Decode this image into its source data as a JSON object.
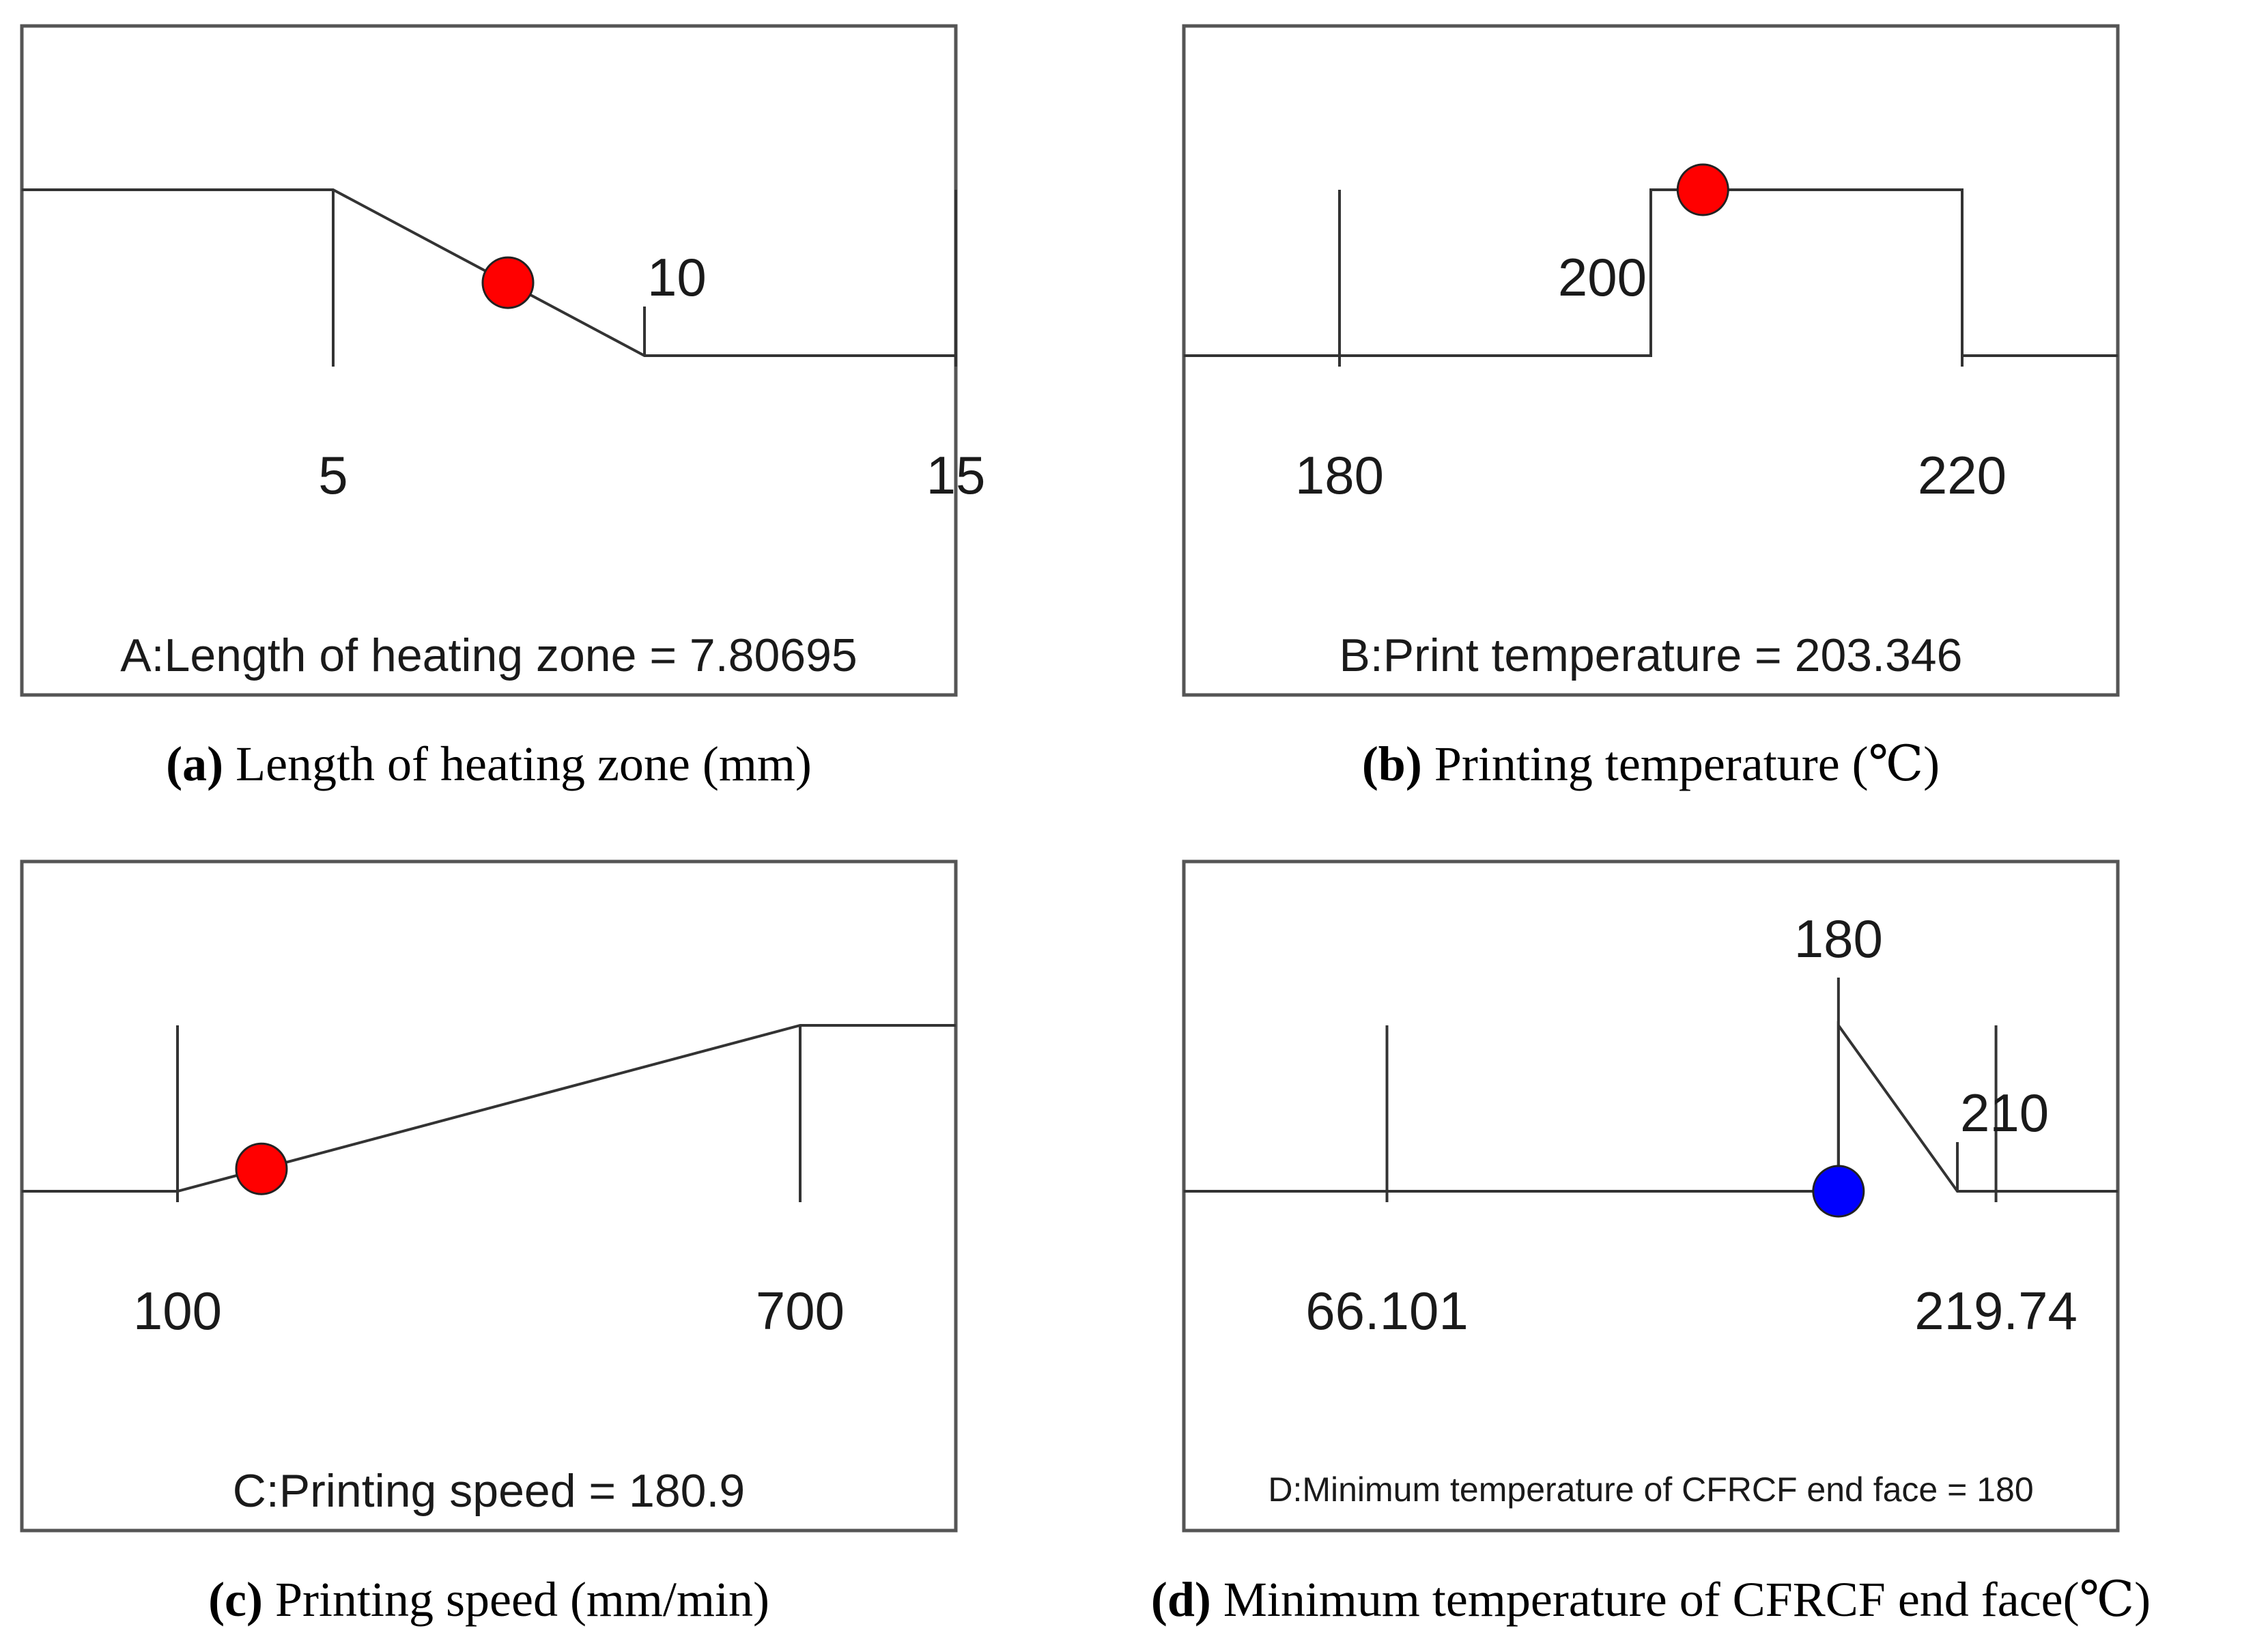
{
  "figure": {
    "colors": {
      "line": "#333333",
      "frame": "#555555",
      "current_point": "#ff0000",
      "response_point": "#0000ff"
    }
  },
  "chart_data": [
    {
      "type": "line",
      "panel": "a",
      "factor_label": "A:Length of heating zone = 7.80695",
      "caption_tag": "(a)",
      "caption_text": "Length of heating zone (mm)",
      "xlim": [
        0,
        15
      ],
      "axis_ticks": [
        {
          "value": 5,
          "label": "5"
        },
        {
          "value": 15,
          "label": "15"
        }
      ],
      "goal_marker": {
        "value": 10,
        "label": "10"
      },
      "desirability": {
        "goal": "minimize",
        "points": [
          {
            "x": 0,
            "d": 1
          },
          {
            "x": 5,
            "d": 1
          },
          {
            "x": 10,
            "d": 0
          },
          {
            "x": 15,
            "d": 0
          }
        ]
      },
      "current": {
        "x": 7.80695,
        "d": 0.44,
        "color": "#ff0000"
      }
    },
    {
      "type": "line",
      "panel": "b",
      "factor_label": "B:Print temperature = 203.346",
      "caption_tag": "(b)",
      "caption_text": "Printing temperature (℃)",
      "xlim": [
        170,
        230
      ],
      "axis_ticks": [
        {
          "value": 180,
          "label": "180"
        },
        {
          "value": 220,
          "label": "220"
        }
      ],
      "goal_marker": {
        "value": 200,
        "label": "200"
      },
      "desirability": {
        "goal": "in range",
        "points": [
          {
            "x": 170,
            "d": 0
          },
          {
            "x": 200,
            "d": 0
          },
          {
            "x": 200,
            "d": 1
          },
          {
            "x": 220,
            "d": 1
          },
          {
            "x": 220,
            "d": 0
          },
          {
            "x": 230,
            "d": 0
          }
        ]
      },
      "current": {
        "x": 203.346,
        "d": 1,
        "color": "#ff0000"
      }
    },
    {
      "type": "line",
      "panel": "c",
      "factor_label": "C:Printing speed = 180.9",
      "caption_tag": "(c)",
      "caption_text": "Printing speed (mm/min)",
      "xlim": [
        -50,
        850
      ],
      "axis_ticks": [
        {
          "value": 100,
          "label": "100"
        },
        {
          "value": 700,
          "label": "700"
        }
      ],
      "desirability": {
        "goal": "maximize",
        "points": [
          {
            "x": -50,
            "d": 0
          },
          {
            "x": 100,
            "d": 0
          },
          {
            "x": 700,
            "d": 1
          },
          {
            "x": 850,
            "d": 1
          }
        ]
      },
      "current": {
        "x": 180.9,
        "d": 0.135,
        "color": "#ff0000"
      }
    },
    {
      "type": "line",
      "panel": "d",
      "factor_label": "D:Minimum temperature of CFRCF end face = 180",
      "caption_tag": "(d)",
      "caption_text": "Minimum temperature of CFRCF end face(℃)",
      "xlim": [
        14.86,
        250.47
      ],
      "axis_ticks": [
        {
          "value": 66.101,
          "label": "66.101"
        },
        {
          "value": 219.74,
          "label": "219.74"
        }
      ],
      "upper_marker": {
        "value": 180,
        "label": "180"
      },
      "goal_marker": {
        "value": 210,
        "label": "210"
      },
      "desirability": {
        "goal": "minimize",
        "points": [
          {
            "x": 14.86,
            "d": 0
          },
          {
            "x": 180,
            "d": 0
          },
          {
            "x": 180,
            "d": 1
          },
          {
            "x": 210,
            "d": 0
          },
          {
            "x": 250.47,
            "d": 0
          }
        ]
      },
      "current": {
        "x": 180,
        "d": 0,
        "color": "#0000ff"
      }
    }
  ]
}
